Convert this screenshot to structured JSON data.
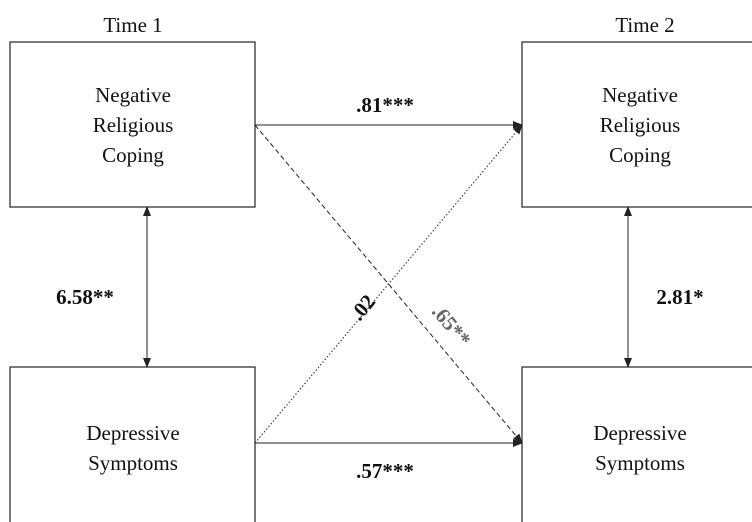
{
  "time_labels": [
    "Time 1",
    "Time 2"
  ],
  "nodes": [
    {
      "lines": [
        "Negative",
        "Religious",
        "Coping"
      ]
    },
    {
      "lines": [
        "Depressive",
        "Symptoms"
      ]
    },
    {
      "lines": [
        "Negative",
        "Religious",
        "Coping"
      ]
    },
    {
      "lines": [
        "Depressive",
        "Symptoms"
      ]
    }
  ],
  "paths": [
    {
      "label": ".81***"
    },
    {
      "label": ".57***"
    },
    {
      "label": ".65**"
    },
    {
      "label": ".02"
    },
    {
      "label": "6.58**"
    },
    {
      "label": "2.81*"
    }
  ]
}
